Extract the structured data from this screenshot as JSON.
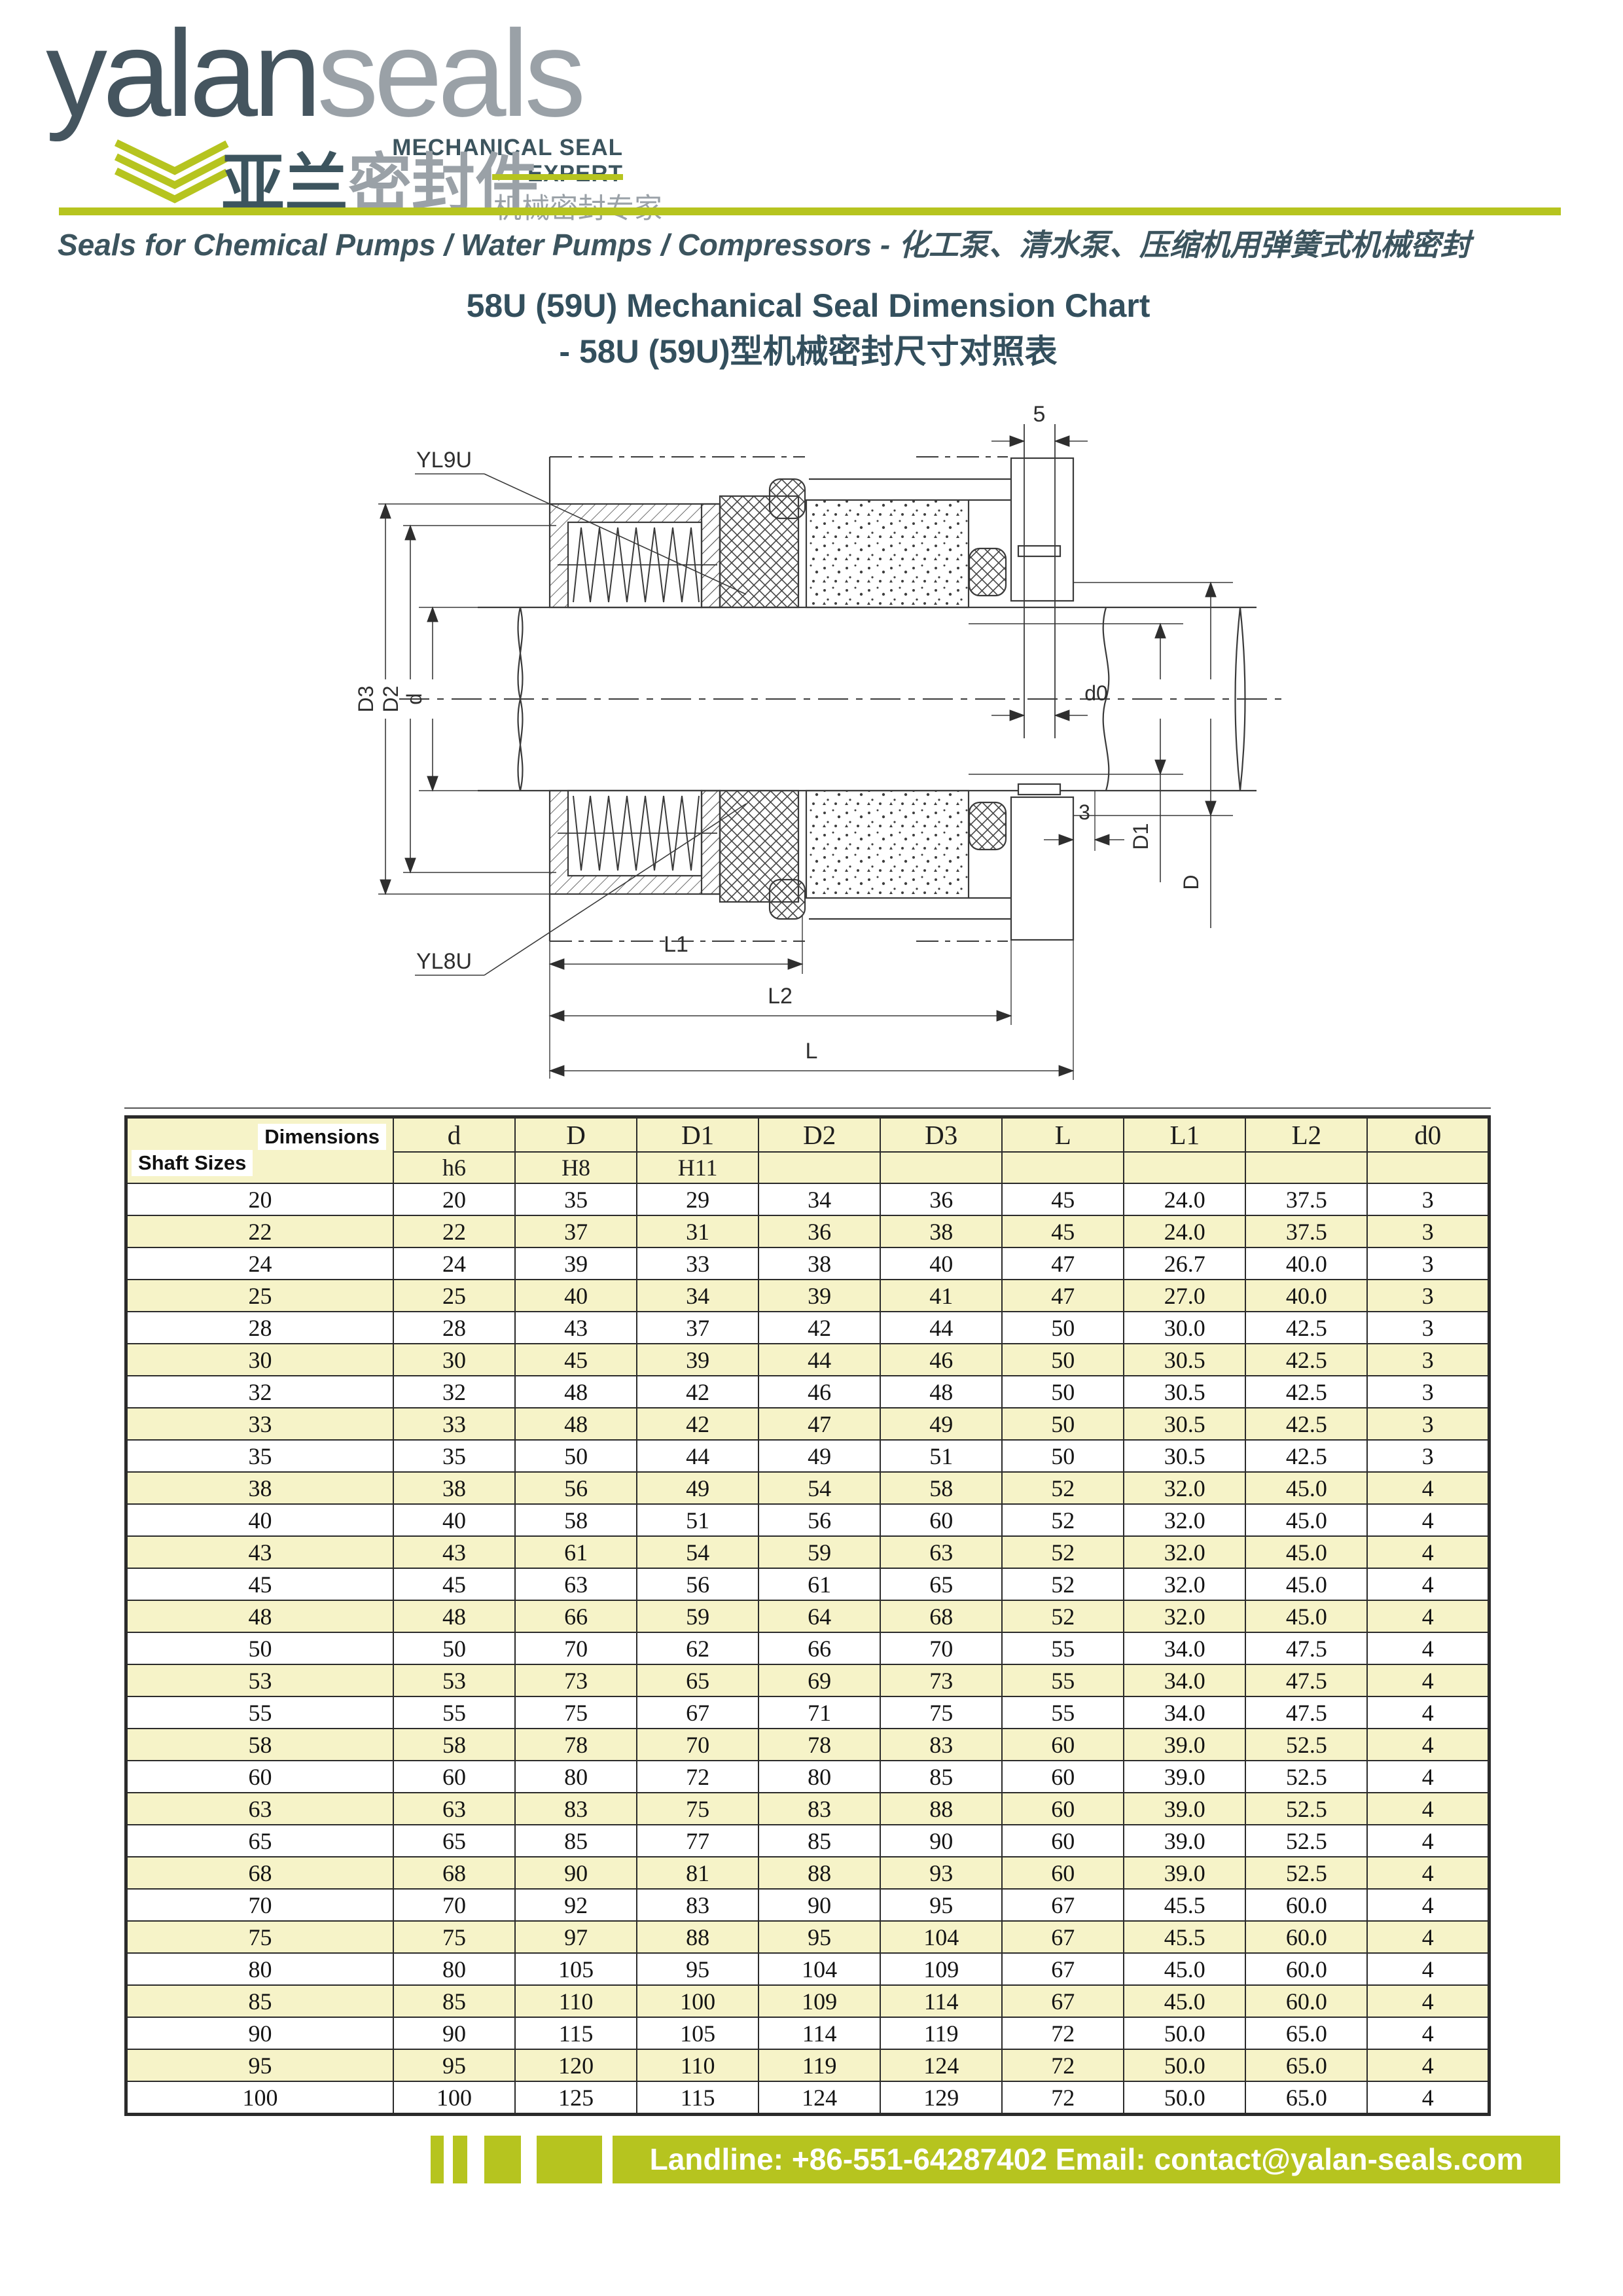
{
  "colors": {
    "accent_lime": "#b6c41f",
    "brand_dark": "#3c545e",
    "brand_gray": "#9aa1a7",
    "table_yellow": "#f6f3c8"
  },
  "logo": {
    "wordmark_part1": "yalan",
    "wordmark_part2": "seals",
    "subtitle": "MECHANICAL SEAL EXPERT",
    "chinese_name_dark": "亚兰",
    "chinese_name_gray": "密封件",
    "chinese_tagline": "机械密封专家"
  },
  "banner": {
    "text": "Seals for Chemical Pumps / Water Pumps / Compressors - 化工泵、清水泵、压缩机用弹簧式机械密封"
  },
  "title": {
    "line1": "58U (59U) Mechanical Seal Dimension Chart",
    "line2": "- 58U (59U)型机械密封尺寸对照表"
  },
  "drawing": {
    "labels": {
      "leader_top": "YL9U",
      "leader_bottom": "YL8U",
      "dim_5": "5",
      "dim_3": "3",
      "dim_d0": "d0",
      "dim_d": "d",
      "dim_D": "D",
      "dim_D1": "D1",
      "dim_D2": "D2",
      "dim_D3": "D3",
      "dim_L": "L",
      "dim_L1": "L1",
      "dim_L2": "L2"
    }
  },
  "table": {
    "corner": {
      "top": "Dimensions",
      "bottom": "Shaft Sizes"
    },
    "columns": [
      {
        "label": "d",
        "tol": "h6"
      },
      {
        "label": "D",
        "tol": "H8"
      },
      {
        "label": "D1",
        "tol": "H11"
      },
      {
        "label": "D2",
        "tol": ""
      },
      {
        "label": "D3",
        "tol": ""
      },
      {
        "label": "L",
        "tol": ""
      },
      {
        "label": "L1",
        "tol": ""
      },
      {
        "label": "L2",
        "tol": ""
      },
      {
        "label": "d0",
        "tol": ""
      }
    ],
    "rows": [
      [
        "20",
        "20",
        "35",
        "29",
        "34",
        "36",
        "45",
        "24.0",
        "37.5",
        "3"
      ],
      [
        "22",
        "22",
        "37",
        "31",
        "36",
        "38",
        "45",
        "24.0",
        "37.5",
        "3"
      ],
      [
        "24",
        "24",
        "39",
        "33",
        "38",
        "40",
        "47",
        "26.7",
        "40.0",
        "3"
      ],
      [
        "25",
        "25",
        "40",
        "34",
        "39",
        "41",
        "47",
        "27.0",
        "40.0",
        "3"
      ],
      [
        "28",
        "28",
        "43",
        "37",
        "42",
        "44",
        "50",
        "30.0",
        "42.5",
        "3"
      ],
      [
        "30",
        "30",
        "45",
        "39",
        "44",
        "46",
        "50",
        "30.5",
        "42.5",
        "3"
      ],
      [
        "32",
        "32",
        "48",
        "42",
        "46",
        "48",
        "50",
        "30.5",
        "42.5",
        "3"
      ],
      [
        "33",
        "33",
        "48",
        "42",
        "47",
        "49",
        "50",
        "30.5",
        "42.5",
        "3"
      ],
      [
        "35",
        "35",
        "50",
        "44",
        "49",
        "51",
        "50",
        "30.5",
        "42.5",
        "3"
      ],
      [
        "38",
        "38",
        "56",
        "49",
        "54",
        "58",
        "52",
        "32.0",
        "45.0",
        "4"
      ],
      [
        "40",
        "40",
        "58",
        "51",
        "56",
        "60",
        "52",
        "32.0",
        "45.0",
        "4"
      ],
      [
        "43",
        "43",
        "61",
        "54",
        "59",
        "63",
        "52",
        "32.0",
        "45.0",
        "4"
      ],
      [
        "45",
        "45",
        "63",
        "56",
        "61",
        "65",
        "52",
        "32.0",
        "45.0",
        "4"
      ],
      [
        "48",
        "48",
        "66",
        "59",
        "64",
        "68",
        "52",
        "32.0",
        "45.0",
        "4"
      ],
      [
        "50",
        "50",
        "70",
        "62",
        "66",
        "70",
        "55",
        "34.0",
        "47.5",
        "4"
      ],
      [
        "53",
        "53",
        "73",
        "65",
        "69",
        "73",
        "55",
        "34.0",
        "47.5",
        "4"
      ],
      [
        "55",
        "55",
        "75",
        "67",
        "71",
        "75",
        "55",
        "34.0",
        "47.5",
        "4"
      ],
      [
        "58",
        "58",
        "78",
        "70",
        "78",
        "83",
        "60",
        "39.0",
        "52.5",
        "4"
      ],
      [
        "60",
        "60",
        "80",
        "72",
        "80",
        "85",
        "60",
        "39.0",
        "52.5",
        "4"
      ],
      [
        "63",
        "63",
        "83",
        "75",
        "83",
        "88",
        "60",
        "39.0",
        "52.5",
        "4"
      ],
      [
        "65",
        "65",
        "85",
        "77",
        "85",
        "90",
        "60",
        "39.0",
        "52.5",
        "4"
      ],
      [
        "68",
        "68",
        "90",
        "81",
        "88",
        "93",
        "60",
        "39.0",
        "52.5",
        "4"
      ],
      [
        "70",
        "70",
        "92",
        "83",
        "90",
        "95",
        "67",
        "45.5",
        "60.0",
        "4"
      ],
      [
        "75",
        "75",
        "97",
        "88",
        "95",
        "104",
        "67",
        "45.5",
        "60.0",
        "4"
      ],
      [
        "80",
        "80",
        "105",
        "95",
        "104",
        "109",
        "67",
        "45.0",
        "60.0",
        "4"
      ],
      [
        "85",
        "85",
        "110",
        "100",
        "109",
        "114",
        "67",
        "45.0",
        "60.0",
        "4"
      ],
      [
        "90",
        "90",
        "115",
        "105",
        "114",
        "119",
        "72",
        "50.0",
        "65.0",
        "4"
      ],
      [
        "95",
        "95",
        "120",
        "110",
        "119",
        "124",
        "72",
        "50.0",
        "65.0",
        "4"
      ],
      [
        "100",
        "100",
        "125",
        "115",
        "124",
        "129",
        "72",
        "50.0",
        "65.0",
        "4"
      ]
    ]
  },
  "footer": {
    "contact": "Landline: +86-551-64287402 Email: contact@yalan-seals.com"
  }
}
